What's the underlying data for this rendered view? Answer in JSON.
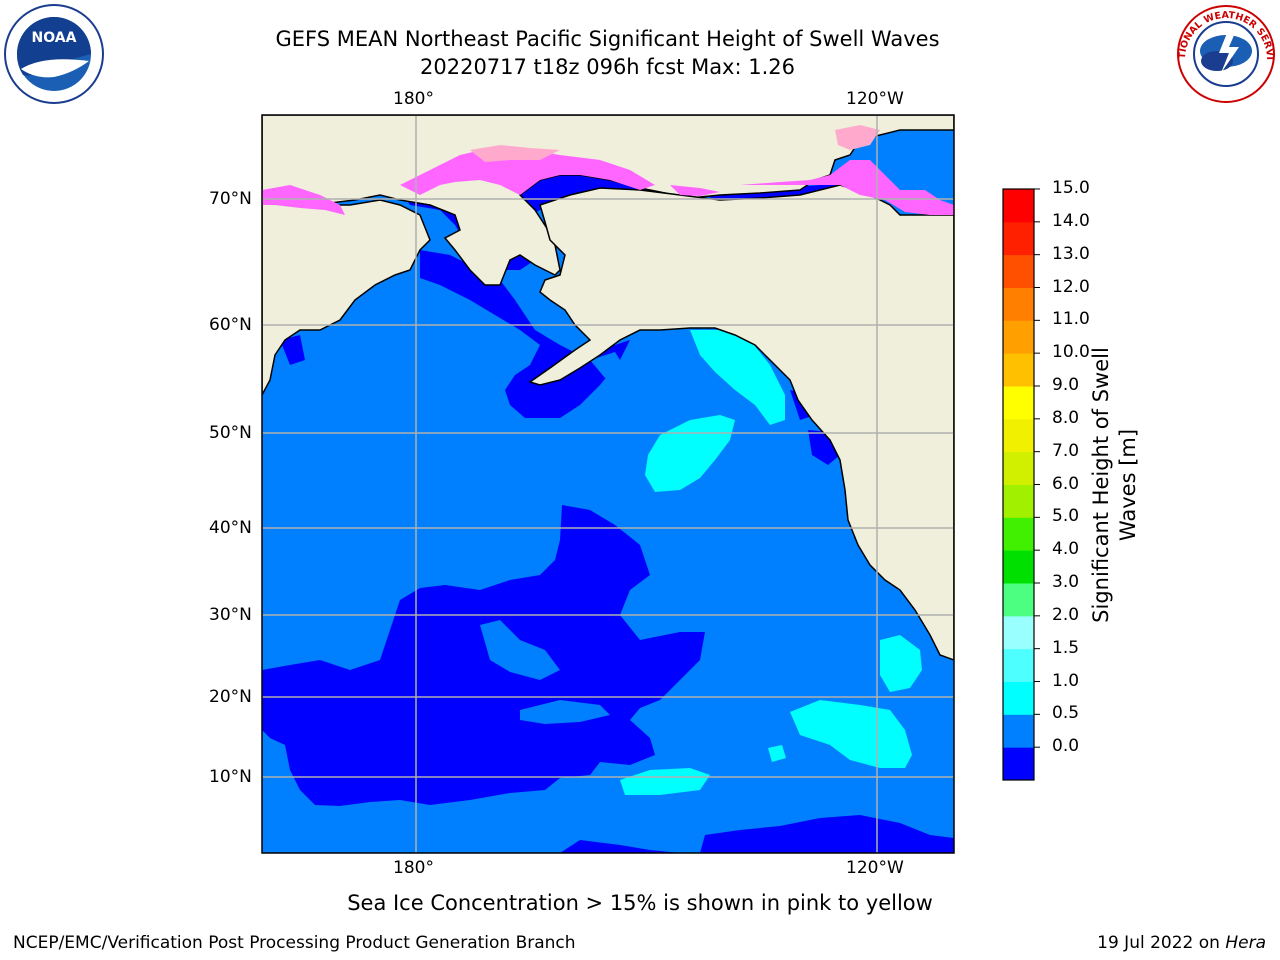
{
  "title_line1": "GEFS MEAN Northeast Pacific Significant Height of Swell Waves",
  "title_line2": "20220717 t18z 096h fcst   Max: 1.26",
  "axes": {
    "top_labels": [
      "180°",
      "120°W"
    ],
    "bottom_labels": [
      "180°",
      "120°W"
    ],
    "left_labels": [
      "70°N",
      "60°N",
      "50°N",
      "40°N",
      "30°N",
      "20°N",
      "10°N"
    ]
  },
  "colorbar": {
    "title_line1": "Significant Height of Swell",
    "title_line2": "Waves [m]",
    "ticks": [
      "15.0",
      "14.0",
      "13.0",
      "12.0",
      "11.0",
      "10.0",
      "9.0",
      "8.0",
      "7.0",
      "6.0",
      "5.0",
      "4.0",
      "3.0",
      "2.0",
      "1.5",
      "1.0",
      "0.5",
      "0.0"
    ],
    "colors_bottom_to_top": [
      "#0000ff",
      "#0080ff",
      "#00ffff",
      "#4dffff",
      "#99ffff",
      "#4dff80",
      "#00e000",
      "#40f000",
      "#a0f000",
      "#d0f000",
      "#f0f000",
      "#ffff00",
      "#ffc000",
      "#ffa000",
      "#ff8000",
      "#ff5000",
      "#ff2000",
      "#ff0000"
    ]
  },
  "map_colors": {
    "land": "#efefdb",
    "swell_0_05": "#0000ff",
    "swell_05_10": "#0080ff",
    "swell_10_15": "#00ffff",
    "ice_pink": "#ff66ff",
    "ice_light": "#ffaacc"
  },
  "footnote": "Sea Ice Concentration > 15% is shown in pink to yellow",
  "footer_left": "NCEP/EMC/Verification Post Processing Product Generation Branch",
  "footer_right_date": "19 Jul 2022 on",
  "footer_right_system": "Hera",
  "logos": {
    "noaa_text": "NOAA",
    "nws_text": "NATIONAL WEATHER SERVICE"
  }
}
